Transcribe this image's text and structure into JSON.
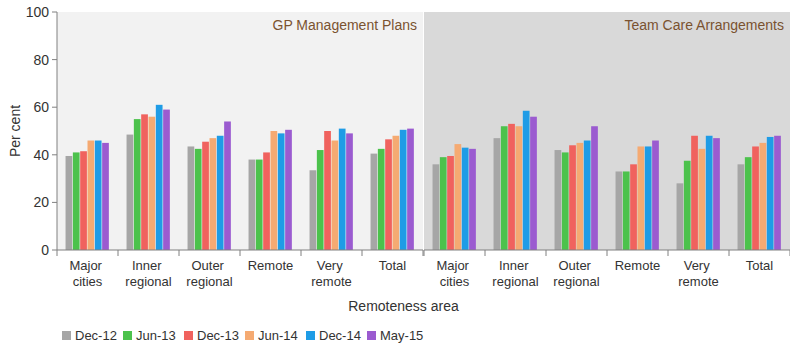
{
  "chart_data": [
    {
      "type": "bar",
      "title": "GP Management Plans",
      "ylabel": "Per cent",
      "xlabel": "Remoteness area",
      "categories": [
        "Major cities",
        "Inner regional",
        "Outer regional",
        "Remote",
        "Very remote",
        "Total"
      ],
      "ylim": [
        0,
        100
      ],
      "yticks": [
        0,
        20,
        40,
        60,
        80,
        100
      ],
      "grid": false,
      "legend": "bottom",
      "series": [
        {
          "name": "Dec-12",
          "color": "#a6a6a6",
          "values": [
            39.5,
            48.5,
            43.5,
            38,
            33.5,
            40.5
          ]
        },
        {
          "name": "Jun-13",
          "color": "#4cc24c",
          "values": [
            41,
            55,
            42.5,
            38,
            42,
            42.5
          ]
        },
        {
          "name": "Dec-13",
          "color": "#f0625e",
          "values": [
            41.5,
            57,
            45.5,
            41,
            50,
            46.5
          ]
        },
        {
          "name": "Jun-14",
          "color": "#f5aa72",
          "values": [
            46,
            56,
            47,
            50,
            46,
            48
          ]
        },
        {
          "name": "Dec-14",
          "color": "#1f9ce6",
          "values": [
            46,
            61,
            48,
            49,
            51,
            50.5
          ]
        },
        {
          "name": "May-15",
          "color": "#9b5bd0",
          "values": [
            45,
            59,
            54,
            50.5,
            49,
            51
          ]
        }
      ]
    },
    {
      "type": "bar",
      "title": "Team Care Arrangements",
      "categories": [
        "Major cities",
        "Inner regional",
        "Outer regional",
        "Remote",
        "Very remote",
        "Total"
      ],
      "ylim": [
        0,
        100
      ],
      "yticks": [
        0,
        20,
        40,
        60,
        80,
        100
      ],
      "grid": false,
      "tick_labels": "x",
      "series": [
        {
          "name": "Dec-12",
          "color": "#a6a6a6",
          "values": [
            36,
            47,
            42,
            33,
            28,
            36
          ]
        },
        {
          "name": "Jun-13",
          "color": "#4cc24c",
          "values": [
            39,
            52,
            41,
            33,
            37.5,
            39
          ]
        },
        {
          "name": "Dec-13",
          "color": "#f0625e",
          "values": [
            39.5,
            53,
            44,
            36,
            48,
            43.5
          ]
        },
        {
          "name": "Jun-14",
          "color": "#f5aa72",
          "values": [
            44.5,
            52,
            45,
            43.5,
            42.5,
            45
          ]
        },
        {
          "name": "Dec-14",
          "color": "#1f9ce6",
          "values": [
            43,
            58.5,
            46,
            43.5,
            48,
            47.5
          ]
        },
        {
          "name": "May-15",
          "color": "#9b5bd0",
          "values": [
            42.5,
            56,
            52,
            46,
            47,
            48
          ]
        }
      ]
    }
  ]
}
